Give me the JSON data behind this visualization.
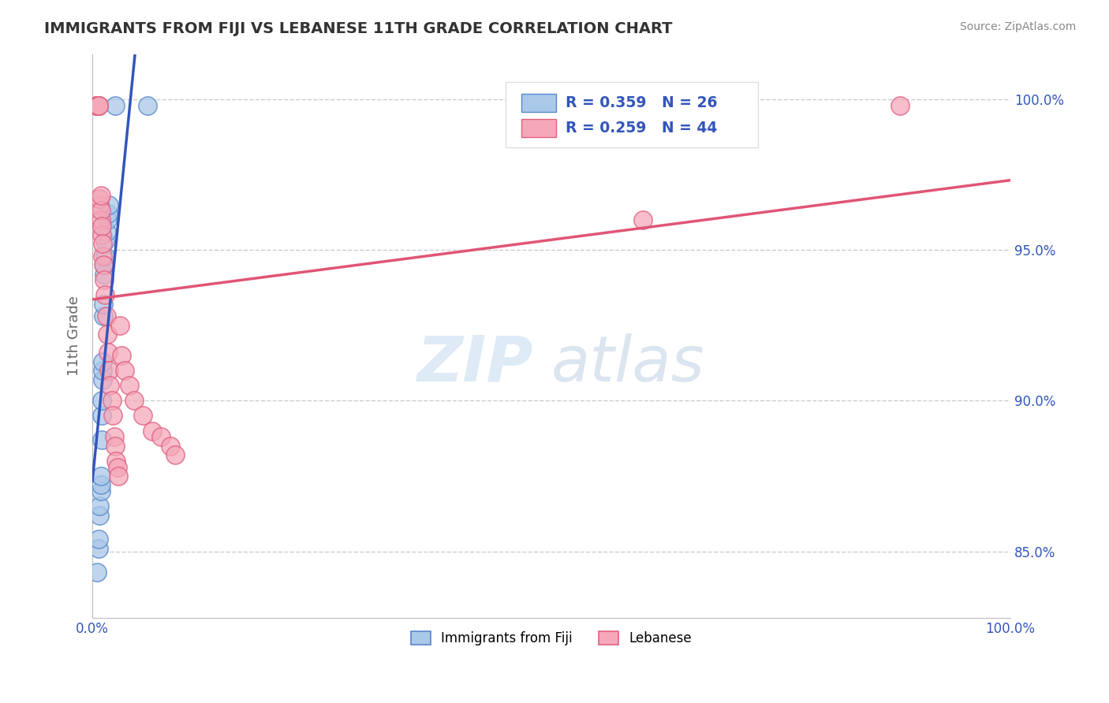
{
  "title": "IMMIGRANTS FROM FIJI VS LEBANESE 11TH GRADE CORRELATION CHART",
  "source": "Source: ZipAtlas.com",
  "ylabel": "11th Grade",
  "xlim": [
    0.0,
    1.0
  ],
  "ylim": [
    0.828,
    1.015
  ],
  "yticks": [
    0.85,
    0.9,
    0.95,
    1.0
  ],
  "ytick_labels": [
    "85.0%",
    "90.0%",
    "95.0%",
    "100.0%"
  ],
  "xticks": [
    0.0,
    0.5,
    1.0
  ],
  "xtick_labels": [
    "0.0%",
    "",
    "100.0%"
  ],
  "fiji_color": "#aac8e8",
  "lebanese_color": "#f5a8ba",
  "fiji_edge_color": "#5588cc",
  "lebanese_edge_color": "#e06080",
  "fiji_line_color": "#3355bb",
  "lebanese_line_color": "#e05575",
  "grid_color": "#cccccc",
  "background_color": "#ffffff",
  "fiji_R": 0.359,
  "fiji_N": 26,
  "lebanese_R": 0.259,
  "lebanese_N": 44,
  "legend_color": "#3355bb",
  "watermark_zip": "ZIP",
  "watermark_atlas": "atlas",
  "fiji_points_x": [
    0.005,
    0.007,
    0.007,
    0.008,
    0.008,
    0.009,
    0.009,
    0.009,
    0.01,
    0.01,
    0.01,
    0.011,
    0.011,
    0.011,
    0.012,
    0.012,
    0.013,
    0.013,
    0.014,
    0.014,
    0.015,
    0.016,
    0.017,
    0.018,
    0.025,
    0.06
  ],
  "fiji_points_y": [
    0.843,
    0.851,
    0.854,
    0.862,
    0.865,
    0.87,
    0.872,
    0.875,
    0.887,
    0.895,
    0.9,
    0.907,
    0.91,
    0.913,
    0.928,
    0.932,
    0.942,
    0.945,
    0.948,
    0.953,
    0.956,
    0.96,
    0.962,
    0.965,
    0.998,
    0.998
  ],
  "lebanese_points_x": [
    0.004,
    0.005,
    0.005,
    0.006,
    0.006,
    0.007,
    0.007,
    0.007,
    0.008,
    0.008,
    0.009,
    0.009,
    0.009,
    0.01,
    0.01,
    0.011,
    0.011,
    0.012,
    0.013,
    0.014,
    0.015,
    0.016,
    0.017,
    0.018,
    0.019,
    0.021,
    0.022,
    0.024,
    0.025,
    0.026,
    0.027,
    0.028,
    0.03,
    0.032,
    0.035,
    0.04,
    0.045,
    0.055,
    0.065,
    0.075,
    0.085,
    0.09,
    0.6,
    0.88
  ],
  "lebanese_points_y": [
    0.998,
    0.998,
    0.998,
    0.998,
    0.998,
    0.998,
    0.998,
    0.998,
    0.965,
    0.967,
    0.96,
    0.963,
    0.968,
    0.955,
    0.958,
    0.948,
    0.952,
    0.945,
    0.94,
    0.935,
    0.928,
    0.922,
    0.916,
    0.91,
    0.905,
    0.9,
    0.895,
    0.888,
    0.885,
    0.88,
    0.878,
    0.875,
    0.925,
    0.915,
    0.91,
    0.905,
    0.9,
    0.895,
    0.89,
    0.888,
    0.885,
    0.882,
    0.96,
    0.998
  ]
}
